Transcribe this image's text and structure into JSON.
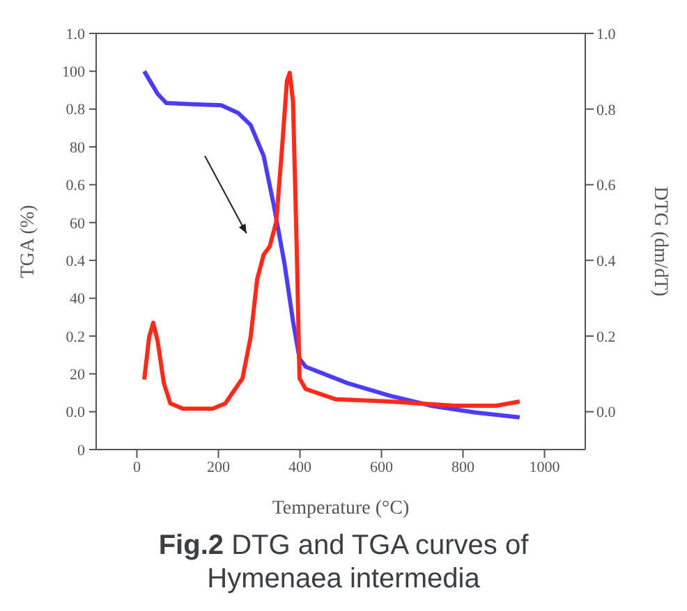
{
  "chart_data": {
    "type": "line",
    "xlabel": "Temperature (°C)",
    "ylabel": "TGA (%)",
    "y2label": "DTG (dm/dT)",
    "annotations": [
      "Fig.2  DTG and TGA curves of Hymenaea intermedia"
    ],
    "xlim": [
      -100,
      1100
    ],
    "xticks": [
      0,
      200,
      400,
      600,
      800,
      1000
    ],
    "ylim": [
      0,
      110
    ],
    "yticks": [
      0,
      20,
      40,
      60,
      80,
      100
    ],
    "y2lim": [
      -0.1,
      1.0
    ],
    "y2ticks": [
      {
        "value": 0,
        "label": "0.0"
      },
      0.2,
      0.4,
      0.6,
      0.8,
      {
        "value": 1,
        "label": "1.0"
      }
    ],
    "y3lim": [
      -0.1,
      1.0
    ],
    "y3ticks": [
      {
        "value": 0,
        "label": "0.0"
      },
      0.2,
      0.4,
      0.6,
      0.8,
      {
        "value": 1,
        "label": "1.0"
      }
    ],
    "series": [
      {
        "color": "#4c3cf5",
        "x": [
          18,
          51,
          72,
          134,
          207,
          248,
          279,
          311,
          336,
          362,
          383,
          399,
          414,
          518,
          622,
          726,
          830,
          939
        ],
        "values": [
          100,
          94,
          91.6,
          91.3,
          91,
          89,
          85.8,
          77.6,
          64.5,
          49.2,
          33.9,
          24,
          21.9,
          17.5,
          14.2,
          11.5,
          9.8,
          8.5
        ]
      },
      {
        "color": "#ff2a1a",
        "axis": "y2",
        "x": [
          18,
          30,
          40,
          51,
          66,
          82,
          113,
          186,
          217,
          259,
          279,
          295,
          311,
          326,
          342,
          357,
          368,
          375,
          383,
          392,
          399,
          414,
          487,
          622,
          778,
          882,
          939
        ],
        "values": [
          0.085,
          0.197,
          0.235,
          0.186,
          0.076,
          0.022,
          0.008,
          0.008,
          0.022,
          0.088,
          0.197,
          0.35,
          0.415,
          0.437,
          0.503,
          0.71,
          0.874,
          0.896,
          0.82,
          0.437,
          0.088,
          0.06,
          0.033,
          0.027,
          0.016,
          0.016,
          0.027
        ]
      }
    ]
  }
}
